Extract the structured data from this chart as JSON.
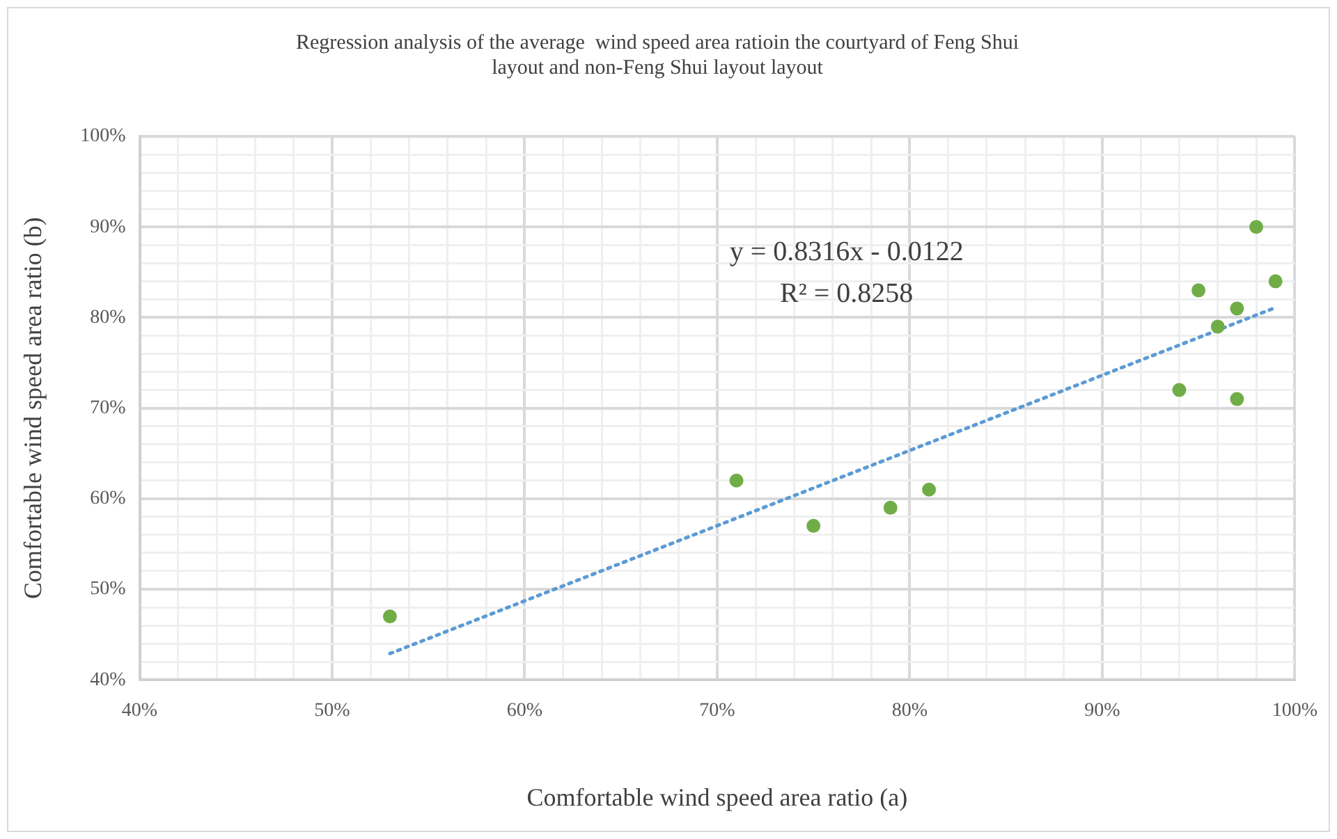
{
  "chart_data": {
    "type": "scatter",
    "title": "Regression analysis of the average  wind speed area ratioin the courtyard of Feng Shui layout and non-Feng Shui layout layout",
    "xlabel": "Comfortable wind speed area ratio (a)",
    "ylabel": "Comfortable wind speed area ratio (b)",
    "xlim": [
      40,
      100
    ],
    "ylim": [
      40,
      100
    ],
    "xticks": [
      {
        "value": 40,
        "label": "40%"
      },
      {
        "value": 42,
        "label": null
      },
      {
        "value": 44,
        "label": null
      },
      {
        "value": 46,
        "label": null
      },
      {
        "value": 48,
        "label": null
      },
      {
        "value": 50,
        "label": "50%"
      },
      {
        "value": 52,
        "label": null
      },
      {
        "value": 54,
        "label": null
      },
      {
        "value": 56,
        "label": null
      },
      {
        "value": 58,
        "label": null
      },
      {
        "value": 60,
        "label": "60%"
      },
      {
        "value": 62,
        "label": null
      },
      {
        "value": 64,
        "label": null
      },
      {
        "value": 66,
        "label": null
      },
      {
        "value": 68,
        "label": null
      },
      {
        "value": 70,
        "label": "70%"
      },
      {
        "value": 72,
        "label": null
      },
      {
        "value": 74,
        "label": null
      },
      {
        "value": 76,
        "label": null
      },
      {
        "value": 78,
        "label": null
      },
      {
        "value": 80,
        "label": "80%"
      },
      {
        "value": 82,
        "label": null
      },
      {
        "value": 84,
        "label": null
      },
      {
        "value": 86,
        "label": null
      },
      {
        "value": 88,
        "label": null
      },
      {
        "value": 90,
        "label": "90%"
      },
      {
        "value": 92,
        "label": null
      },
      {
        "value": 94,
        "label": null
      },
      {
        "value": 96,
        "label": null
      },
      {
        "value": 98,
        "label": null
      },
      {
        "value": 100,
        "label": "100%"
      }
    ],
    "yticks": [
      {
        "value": 40,
        "label": "40%"
      },
      {
        "value": 42,
        "label": null
      },
      {
        "value": 44,
        "label": null
      },
      {
        "value": 46,
        "label": null
      },
      {
        "value": 48,
        "label": null
      },
      {
        "value": 50,
        "label": "50%"
      },
      {
        "value": 52,
        "label": null
      },
      {
        "value": 54,
        "label": null
      },
      {
        "value": 56,
        "label": null
      },
      {
        "value": 58,
        "label": null
      },
      {
        "value": 60,
        "label": "60%"
      },
      {
        "value": 62,
        "label": null
      },
      {
        "value": 64,
        "label": null
      },
      {
        "value": 66,
        "label": null
      },
      {
        "value": 68,
        "label": null
      },
      {
        "value": 70,
        "label": "70%"
      },
      {
        "value": 72,
        "label": null
      },
      {
        "value": 74,
        "label": null
      },
      {
        "value": 76,
        "label": null
      },
      {
        "value": 78,
        "label": null
      },
      {
        "value": 80,
        "label": "80%"
      },
      {
        "value": 82,
        "label": null
      },
      {
        "value": 84,
        "label": null
      },
      {
        "value": 86,
        "label": null
      },
      {
        "value": 88,
        "label": null
      },
      {
        "value": 90,
        "label": "90%"
      },
      {
        "value": 92,
        "label": null
      },
      {
        "value": 94,
        "label": null
      },
      {
        "value": 96,
        "label": null
      },
      {
        "value": 98,
        "label": null
      },
      {
        "value": 100,
        "label": "100%"
      }
    ],
    "grid": true,
    "legend": false,
    "series": [
      {
        "type": "scatter",
        "color": "#70ad47",
        "marker": "circle",
        "x": [
          53,
          71,
          75,
          79,
          81,
          94,
          95,
          96,
          97,
          97,
          98,
          99
        ],
        "values": [
          47,
          62,
          57,
          59,
          61,
          72,
          83,
          79,
          81,
          71,
          90,
          84
        ]
      },
      {
        "type": "line",
        "color": "#5b9bd5",
        "marker": "none",
        "line_style": "dotted",
        "x": [
          53,
          99
        ],
        "values": [
          42.9,
          81.1
        ]
      }
    ],
    "annotations": [
      "y = 0.8316x - 0.0122",
      "R² = 0.8258"
    ]
  }
}
